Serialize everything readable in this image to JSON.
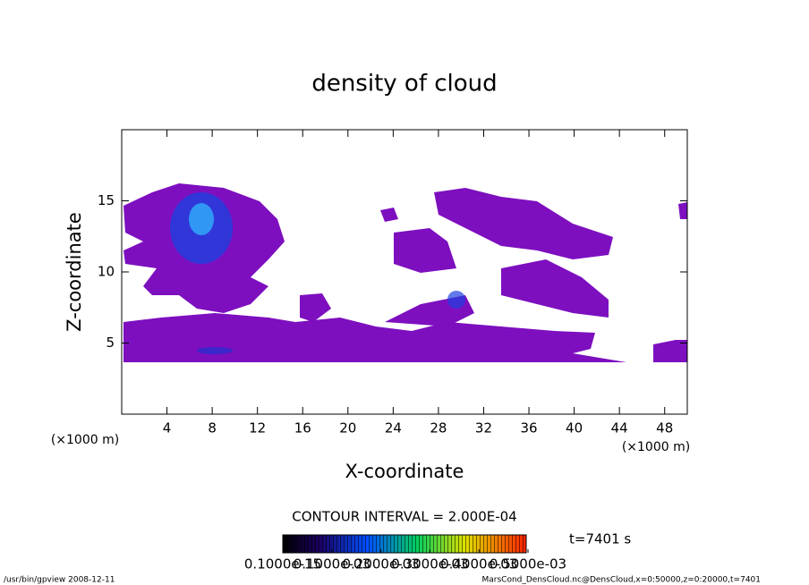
{
  "chart_data": {
    "type": "contour",
    "title": "density of cloud",
    "xlabel": "X-coordinate",
    "ylabel": "Z-coordinate",
    "xunit": "(×1000 m)",
    "xlim": [
      0,
      50
    ],
    "xticks": [
      4,
      8,
      12,
      16,
      20,
      24,
      28,
      32,
      36,
      40,
      44,
      48
    ],
    "ylim": [
      0,
      20
    ],
    "yticks": [
      5,
      10,
      15
    ],
    "contour_interval": "CONTOUR INTERVAL = 2.000E-04",
    "time_label": "t=7401 s",
    "clim": [
      0,
      0.0005
    ],
    "cticks": [
      {
        "value": 1e-16,
        "label": "0.1000e-15"
      },
      {
        "value": 0.0001,
        "label": "0.1000e-03"
      },
      {
        "value": 0.0002,
        "label": "0.2000e-03"
      },
      {
        "value": 0.0003,
        "label": "0.3000e-03"
      },
      {
        "value": 0.0004,
        "label": "0.4000e-03"
      },
      {
        "value": 0.0005,
        "label": "0.5000e-03"
      }
    ],
    "footer_left": "/usr/bin/gpview  2008-12-11",
    "footer_right": "MarsCond_DensCloud.nc@DensCloud,x=0:50000,z=0:20000,t=7401"
  }
}
